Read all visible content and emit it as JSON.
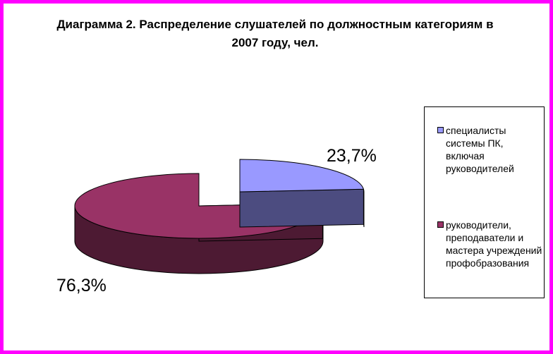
{
  "chart_data": {
    "type": "pie",
    "title": "Диаграмма 2. Распределение слушателей по должностным категориям в 2007 году, чел.",
    "slices": [
      {
        "name": "специалисты системы ПК, включая руководителей",
        "value": 23.7,
        "label": "23,7%",
        "color_top": "#9999ff",
        "color_side": "#4c4c80"
      },
      {
        "name": "руководители, преподаватели и мастера учреждений профобразования",
        "value": 76.3,
        "label": "76,3%",
        "color_top": "#993366",
        "color_side": "#4d1a33"
      }
    ],
    "legend_position": "right",
    "style": "3d-exploded"
  },
  "colors": {
    "frame_border": "#ff00ff",
    "background": "#ffffff"
  }
}
